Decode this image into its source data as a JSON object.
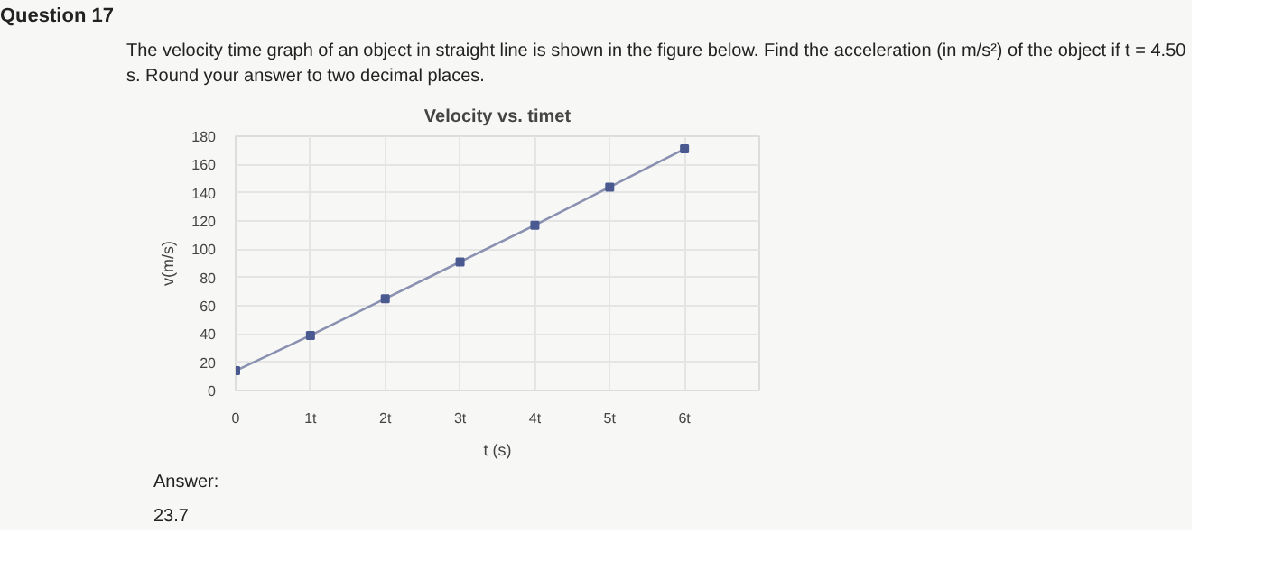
{
  "chart_data": {
    "type": "line",
    "title": "Velocity vs. timet",
    "xlabel": "t (s)",
    "ylabel": "v(m/s)",
    "categories": [
      "0",
      "1t",
      "2t",
      "3t",
      "4t",
      "5t",
      "6t"
    ],
    "series": [
      {
        "color": "#8a90b0",
        "values": [
          14,
          39,
          65,
          91,
          117,
          144,
          171
        ]
      }
    ],
    "ylim": [
      0,
      180
    ],
    "yticks": [
      0,
      20,
      40,
      60,
      80,
      100,
      120,
      140,
      160,
      180
    ],
    "grid": true,
    "marker": "square",
    "line_style": "solid",
    "annotations": [
      "Question 17",
      "The velocity time graph of an object in straight line is shown in the figure below. Find the acceleration (in m/s²) of the object if t = 4.50 s. Round your answer to two decimal places.",
      "Answer:",
      "23.7"
    ]
  }
}
